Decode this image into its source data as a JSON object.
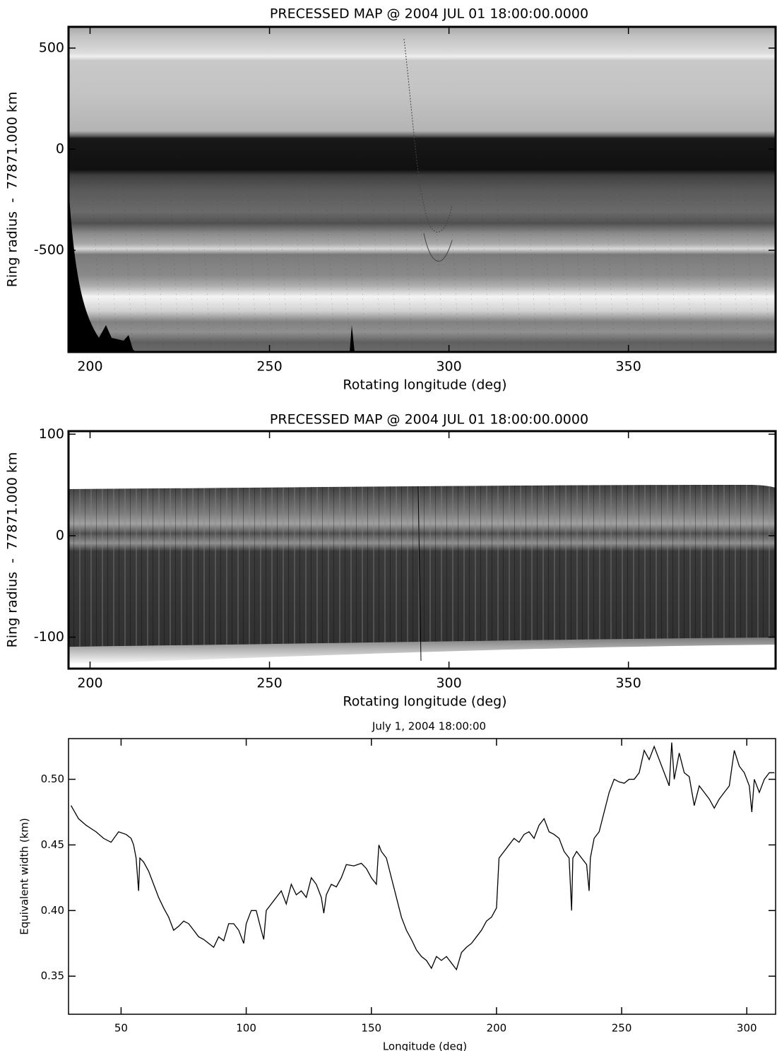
{
  "chart_data": [
    {
      "type": "image",
      "title": "PRECESSED MAP @ 2004 JUL 01 18:00:00.0000",
      "x_label": "Rotating longitude (deg)",
      "y_label": "Ring radius  -  77871.000 km",
      "xlim": [
        194,
        391
      ],
      "ylim": [
        -1003,
        605
      ],
      "xticks": [
        200,
        250,
        300,
        350
      ],
      "yticks": [
        -500,
        0,
        500
      ]
    },
    {
      "type": "image",
      "title": "PRECESSED MAP @ 2004 JUL 01 18:00:00.0000",
      "x_label": "Rotating longitude (deg)",
      "y_label": "Ring radius  -  77871.000 km",
      "xlim": [
        194,
        391
      ],
      "ylim": [
        -131,
        103
      ],
      "xticks": [
        200,
        250,
        300,
        350
      ],
      "yticks": [
        -100,
        0,
        100
      ]
    },
    {
      "type": "line",
      "title": "July 1, 2004 18:00:00",
      "x_label": "Longitude (deg)",
      "y_label": "Equivalent width (km)",
      "xlim": [
        29,
        311.5
      ],
      "ylim": [
        0.321,
        0.531
      ],
      "xticks": [
        50,
        100,
        150,
        200,
        250,
        300
      ],
      "yticks": [
        0.35,
        {
          "value": 0.4,
          "label": "0.40"
        },
        0.45,
        {
          "value": 0.5,
          "label": "0.50"
        }
      ],
      "color": "#000000",
      "x": [
        30,
        33,
        36,
        40,
        43,
        46,
        49,
        52,
        54,
        55,
        56,
        57,
        57.5,
        59,
        61,
        63,
        65,
        67,
        69,
        71,
        73,
        75,
        77,
        79,
        81,
        83,
        85,
        87,
        89,
        91,
        93,
        95,
        97,
        99,
        100,
        102,
        104,
        106,
        107,
        108,
        110,
        112,
        114,
        116,
        118,
        120,
        122,
        124,
        126,
        128,
        130,
        131,
        132,
        134,
        136,
        138,
        140,
        143,
        146,
        148,
        150,
        152,
        153,
        154,
        156,
        158,
        160,
        162,
        164,
        166,
        168,
        170,
        172,
        174,
        176,
        178,
        180,
        182,
        184,
        186,
        188,
        190,
        192,
        194,
        196,
        198,
        200,
        201,
        203,
        205,
        207,
        209,
        211,
        213,
        215,
        217,
        219,
        221,
        223,
        225,
        227,
        229,
        230,
        230.5,
        232,
        234,
        236,
        237,
        237.5,
        239,
        241,
        243,
        245,
        247,
        249,
        251,
        253,
        255,
        257,
        259,
        261,
        263,
        265,
        267,
        269,
        270,
        271,
        273,
        275,
        277,
        279,
        281,
        283,
        285,
        287,
        289,
        291,
        293,
        295,
        297,
        299,
        301,
        302,
        303,
        305,
        307,
        309,
        311
      ],
      "values": [
        0.48,
        0.47,
        0.465,
        0.46,
        0.455,
        0.452,
        0.46,
        0.458,
        0.455,
        0.45,
        0.44,
        0.415,
        0.44,
        0.437,
        0.43,
        0.42,
        0.41,
        0.402,
        0.395,
        0.385,
        0.388,
        0.392,
        0.39,
        0.385,
        0.38,
        0.378,
        0.375,
        0.372,
        0.38,
        0.377,
        0.39,
        0.39,
        0.385,
        0.375,
        0.39,
        0.4,
        0.4,
        0.385,
        0.378,
        0.4,
        0.405,
        0.41,
        0.415,
        0.405,
        0.42,
        0.412,
        0.415,
        0.41,
        0.425,
        0.42,
        0.41,
        0.398,
        0.412,
        0.42,
        0.418,
        0.425,
        0.435,
        0.434,
        0.436,
        0.432,
        0.425,
        0.42,
        0.45,
        0.445,
        0.44,
        0.425,
        0.41,
        0.395,
        0.385,
        0.378,
        0.37,
        0.365,
        0.362,
        0.356,
        0.365,
        0.362,
        0.365,
        0.36,
        0.355,
        0.368,
        0.372,
        0.375,
        0.38,
        0.385,
        0.392,
        0.395,
        0.402,
        0.44,
        0.445,
        0.45,
        0.455,
        0.452,
        0.458,
        0.46,
        0.455,
        0.465,
        0.47,
        0.46,
        0.458,
        0.455,
        0.445,
        0.44,
        0.4,
        0.44,
        0.445,
        0.44,
        0.435,
        0.415,
        0.44,
        0.455,
        0.46,
        0.475,
        0.49,
        0.5,
        0.498,
        0.497,
        0.5,
        0.5,
        0.505,
        0.522,
        0.515,
        0.525,
        0.515,
        0.505,
        0.495,
        0.528,
        0.5,
        0.52,
        0.505,
        0.502,
        0.48,
        0.495,
        0.49,
        0.485,
        0.478,
        0.485,
        0.49,
        0.495,
        0.522,
        0.51,
        0.505,
        0.495,
        0.475,
        0.5,
        0.49,
        0.5,
        0.505,
        0.505
      ]
    }
  ]
}
